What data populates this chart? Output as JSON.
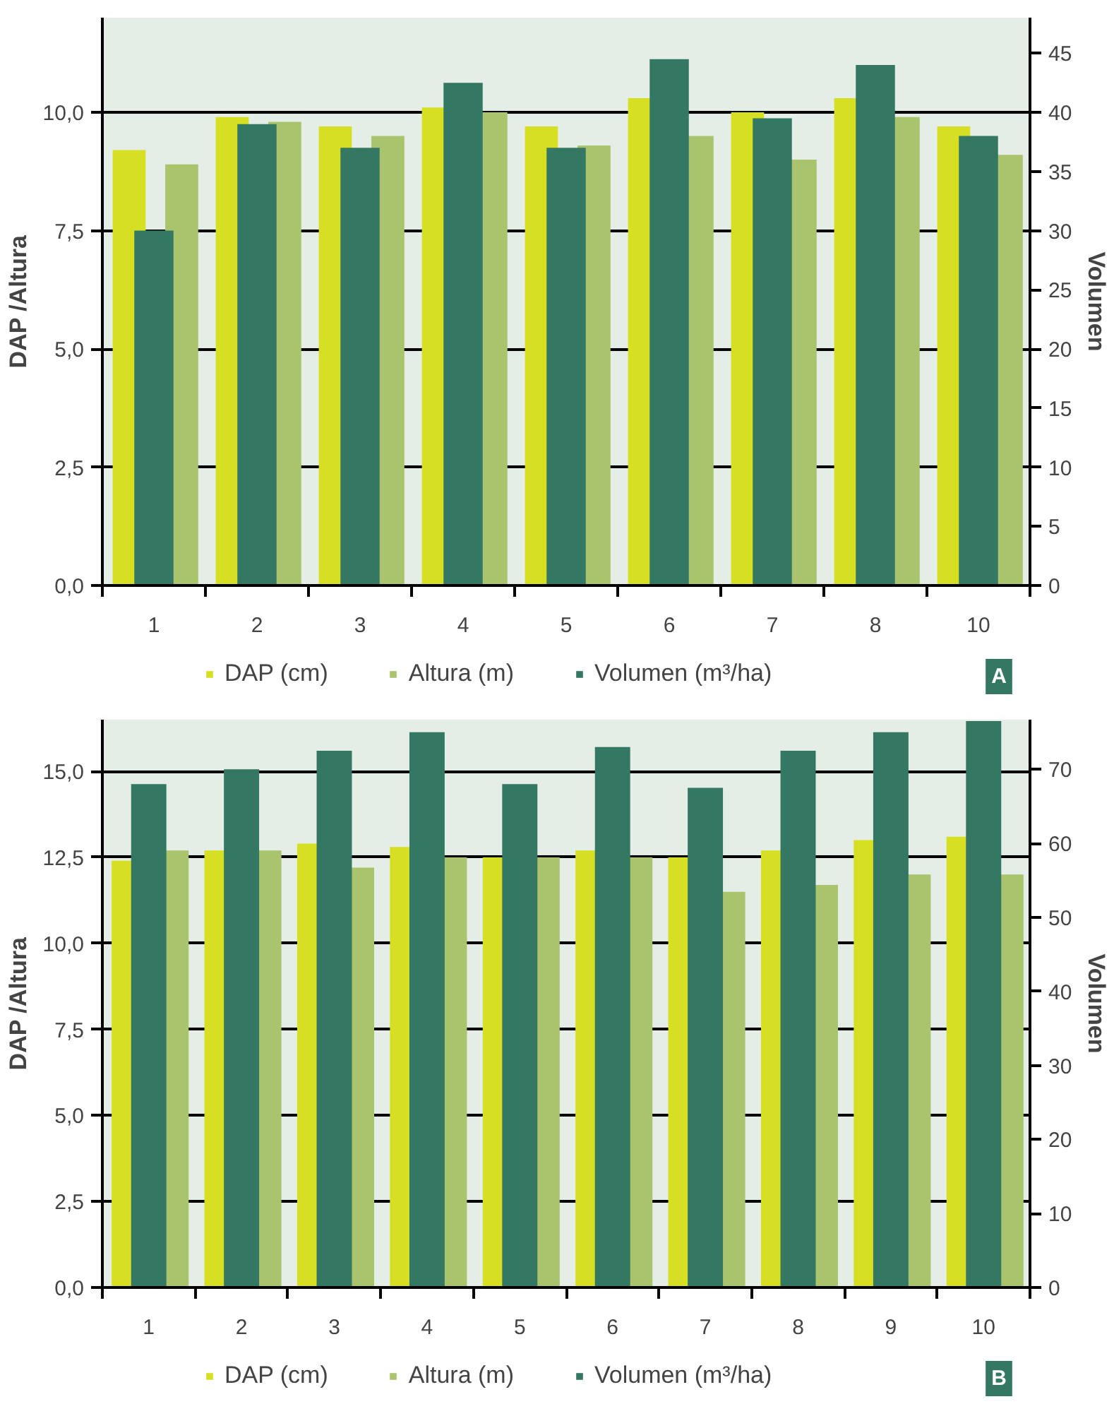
{
  "chart_data": [
    {
      "type": "bar",
      "categories": [
        "1",
        "2",
        "3",
        "4",
        "5",
        "6",
        "7",
        "8",
        "10"
      ],
      "ylabel": "DAP /Altura",
      "y2label": "Volumen",
      "annotations": [
        "A"
      ],
      "series": [
        {
          "name": "DAP (cm)",
          "color": "#d6df22",
          "values": [
            9.2,
            9.9,
            9.7,
            10.1,
            9.7,
            10.3,
            10.0,
            10.3,
            9.7
          ]
        },
        {
          "name": "Altura (m)",
          "color": "#a9c46c",
          "values": [
            8.9,
            9.8,
            9.5,
            10.0,
            9.3,
            9.5,
            9.0,
            9.9,
            9.1
          ]
        },
        {
          "name": "Volumen (m³/ha)",
          "color": "#347763",
          "axis": "y2",
          "values": [
            30,
            39,
            37,
            42.5,
            37,
            44.5,
            39.5,
            44,
            38
          ]
        }
      ],
      "ylim": [
        0,
        12
      ],
      "yticks": [
        {
          "value": 0,
          "label": "0,0"
        },
        {
          "value": 2.5,
          "label": "2,5"
        },
        {
          "value": 5,
          "label": "5,0"
        },
        {
          "value": 7.5,
          "label": "7,5"
        },
        {
          "value": 10,
          "label": "10,0"
        }
      ],
      "y2lim": [
        0,
        48
      ],
      "y2ticks": [
        0,
        5,
        10,
        15,
        20,
        25,
        30,
        35,
        40,
        45
      ],
      "grid": "y",
      "legend": "bottom"
    },
    {
      "type": "bar",
      "categories": [
        "1",
        "2",
        "3",
        "4",
        "5",
        "6",
        "7",
        "8",
        "9",
        "10"
      ],
      "ylabel": "DAP /Altura",
      "y2label": "Volumen",
      "annotations": [
        "B"
      ],
      "series": [
        {
          "name": "DAP (cm)",
          "color": "#d6df22",
          "values": [
            12.4,
            12.7,
            12.9,
            12.8,
            12.5,
            12.7,
            12.5,
            12.7,
            13.0,
            13.1
          ]
        },
        {
          "name": "Altura (m)",
          "color": "#a9c46c",
          "values": [
            12.7,
            12.7,
            12.2,
            12.5,
            12.5,
            12.5,
            11.5,
            11.7,
            12.0,
            12.0
          ]
        },
        {
          "name": "Volumen (m³/ha)",
          "color": "#347763",
          "axis": "y2",
          "values": [
            68,
            70,
            72.5,
            75,
            68,
            73,
            67.5,
            72.5,
            75,
            76.5
          ]
        }
      ],
      "ylim": [
        0,
        16.5
      ],
      "yticks": [
        {
          "value": 0,
          "label": "0,0"
        },
        {
          "value": 2.5,
          "label": "2,5"
        },
        {
          "value": 5,
          "label": "5,0"
        },
        {
          "value": 7.5,
          "label": "7,5"
        },
        {
          "value": 10,
          "label": "10,0"
        },
        {
          "value": 12.5,
          "label": "12,5"
        },
        {
          "value": 15,
          "label": "15,0"
        }
      ],
      "y2lim": [
        0,
        76.7
      ],
      "y2ticks": [
        0,
        10,
        20,
        30,
        40,
        50,
        60,
        70
      ],
      "grid": "y",
      "legend": "bottom"
    }
  ]
}
